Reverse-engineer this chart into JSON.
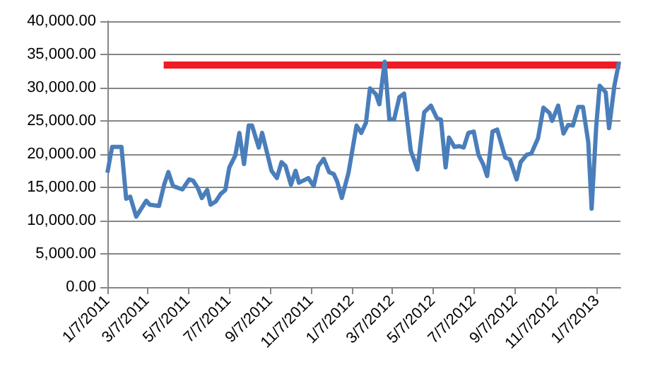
{
  "chart_data": {
    "type": "line",
    "x": [
      "2011-01-07",
      "2011-01-14",
      "2011-01-28",
      "2011-02-04",
      "2011-02-10",
      "2011-02-19",
      "2011-03-06",
      "2011-03-11",
      "2011-03-25",
      "2011-04-02",
      "2011-04-08",
      "2011-04-15",
      "2011-04-29",
      "2011-05-09",
      "2011-05-15",
      "2011-05-22",
      "2011-05-28",
      "2011-06-05",
      "2011-06-10",
      "2011-06-18",
      "2011-06-25",
      "2011-07-02",
      "2011-07-08",
      "2011-07-17",
      "2011-07-23",
      "2011-07-30",
      "2011-08-06",
      "2011-08-11",
      "2011-08-21",
      "2011-08-26",
      "2011-09-09",
      "2011-09-17",
      "2011-09-24",
      "2011-09-30",
      "2011-10-08",
      "2011-10-15",
      "2011-10-20",
      "2011-11-03",
      "2011-11-11",
      "2011-11-18",
      "2011-11-26",
      "2011-12-04",
      "2011-12-11",
      "2011-12-16",
      "2011-12-23",
      "2012-01-02",
      "2012-01-14",
      "2012-01-21",
      "2012-01-28",
      "2012-02-03",
      "2012-02-12",
      "2012-02-17",
      "2012-02-25",
      "2012-03-03",
      "2012-03-10",
      "2012-03-18",
      "2012-03-25",
      "2012-04-04",
      "2012-04-14",
      "2012-04-24",
      "2012-05-04",
      "2012-05-13",
      "2012-05-19",
      "2012-05-26",
      "2012-05-31",
      "2012-06-08",
      "2012-06-15",
      "2012-06-22",
      "2012-06-29",
      "2012-07-07",
      "2012-07-14",
      "2012-07-21",
      "2012-07-27",
      "2012-08-04",
      "2012-08-11",
      "2012-08-23",
      "2012-08-30",
      "2012-09-09",
      "2012-09-15",
      "2012-09-24",
      "2012-10-01",
      "2012-10-11",
      "2012-10-19",
      "2012-10-28",
      "2012-11-01",
      "2012-11-10",
      "2012-11-18",
      "2012-11-25",
      "2012-12-02",
      "2012-12-10",
      "2012-12-17",
      "2012-12-25",
      "2012-12-30",
      "2013-01-06",
      "2013-01-11",
      "2013-01-20",
      "2013-01-25",
      "2013-02-02",
      "2013-02-09"
    ],
    "series": [
      {
        "color": "#4a7ebb",
        "values": [
          17200,
          21100,
          21100,
          13300,
          13600,
          10600,
          13000,
          12400,
          12200,
          15500,
          17300,
          15200,
          14700,
          16200,
          16000,
          14900,
          13400,
          14600,
          12400,
          12900,
          14000,
          14600,
          18000,
          19800,
          23200,
          18500,
          24300,
          24300,
          21000,
          23200,
          17500,
          16400,
          18800,
          18200,
          15400,
          17500,
          15700,
          16400,
          15200,
          18200,
          19300,
          17300,
          17000,
          15900,
          13400,
          17200,
          24300,
          23200,
          24700,
          29900,
          29000,
          27500,
          33900,
          25200,
          25200,
          28600,
          29100,
          20500,
          17700,
          26300,
          27300,
          25400,
          25200,
          18000,
          22500,
          21100,
          21200,
          21000,
          23200,
          23400,
          19900,
          18500,
          16700,
          23400,
          23700,
          19500,
          19200,
          16200,
          18800,
          19900,
          20100,
          22400,
          27000,
          26200,
          25000,
          27300,
          23100,
          24400,
          24300,
          27100,
          27100,
          21800,
          11800,
          24400,
          30300,
          29300,
          23900,
          30300,
          33900
        ]
      },
      {
        "color": "#ee1c25",
        "x": [
          "2011-04-01",
          "2013-02-11"
        ],
        "values": [
          33400,
          33400
        ]
      }
    ],
    "xlim": [
      "2011-01-07",
      "2013-02-11"
    ],
    "xticks": [
      {
        "value": "2011-01-07",
        "label": "1/7/2011"
      },
      {
        "value": "2011-03-07",
        "label": "3/7/2011"
      },
      {
        "value": "2011-05-07",
        "label": "5/7/2011"
      },
      {
        "value": "2011-07-07",
        "label": "7/7/2011"
      },
      {
        "value": "2011-09-07",
        "label": "9/7/2011"
      },
      {
        "value": "2011-11-07",
        "label": "11/7/2011"
      },
      {
        "value": "2012-01-07",
        "label": "1/7/2012"
      },
      {
        "value": "2012-03-07",
        "label": "3/7/2012"
      },
      {
        "value": "2012-05-07",
        "label": "5/7/2012"
      },
      {
        "value": "2012-07-07",
        "label": "7/7/2012"
      },
      {
        "value": "2012-09-07",
        "label": "9/7/2012"
      },
      {
        "value": "2012-11-07",
        "label": "11/7/2012"
      },
      {
        "value": "2013-01-07",
        "label": "1/7/2013"
      }
    ],
    "ylim": [
      0,
      40000
    ],
    "yticks": [
      {
        "value": 0,
        "label": "0.00"
      },
      {
        "value": 5000,
        "label": "5,000.00"
      },
      {
        "value": 10000,
        "label": "10,000.00"
      },
      {
        "value": 15000,
        "label": "15,000.00"
      },
      {
        "value": 20000,
        "label": "20,000.00"
      },
      {
        "value": 25000,
        "label": "25,000.00"
      },
      {
        "value": 30000,
        "label": "30,000.00"
      },
      {
        "value": 35000,
        "label": "35,000.00"
      },
      {
        "value": 40000,
        "label": "40,000.00"
      }
    ],
    "grid": "y",
    "marker": "none",
    "line_style": "solid"
  }
}
